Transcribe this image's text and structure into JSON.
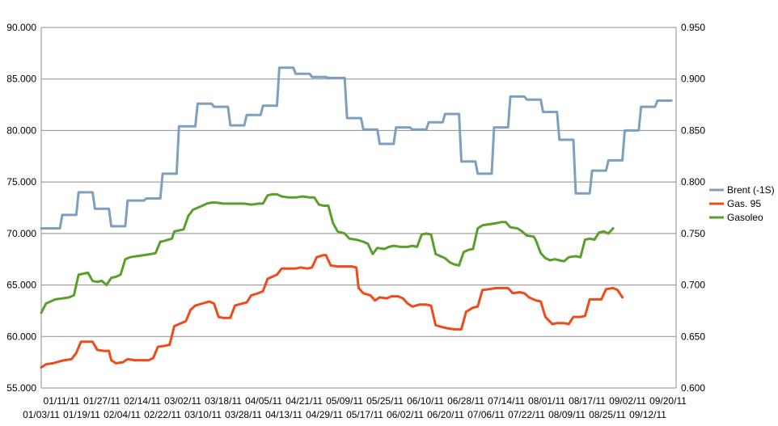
{
  "chart_data": {
    "type": "line",
    "title": "",
    "xlabel": "",
    "ylabel": "",
    "y_left": {
      "range": [
        55,
        90
      ],
      "ticks": [
        "55.000",
        "60.000",
        "65.000",
        "70.000",
        "75.000",
        "80.000",
        "85.000",
        "90.000"
      ]
    },
    "y_right": {
      "range": [
        0.6,
        0.95
      ],
      "ticks": [
        "0.600",
        "0.650",
        "0.700",
        "0.750",
        "0.800",
        "0.850",
        "0.900",
        "0.950"
      ]
    },
    "x_ticks_row1": [
      "01/11/11",
      "01/27/11",
      "02/14/11",
      "03/02/11",
      "03/18/11",
      "04/05/11",
      "04/21/11",
      "05/09/11",
      "05/25/11",
      "06/10/11",
      "06/28/11",
      "07/14/11",
      "08/01/11",
      "08/17/11",
      "09/02/11",
      "09/20/11"
    ],
    "x_ticks_row2": [
      "01/03/11",
      "01/19/11",
      "02/04/11",
      "02/22/11",
      "03/10/11",
      "03/28/11",
      "04/13/11",
      "04/29/11",
      "05/17/11",
      "06/02/11",
      "06/20/11",
      "07/06/11",
      "07/22/11",
      "08/09/11",
      "08/25/11",
      "09/12/11"
    ],
    "grid": true,
    "legend_position": "right",
    "series": [
      {
        "name": "Brent (-1S)",
        "color": "#7f9fbf",
        "axis": "left",
        "points": [
          [
            0,
            70.5
          ],
          [
            8,
            70.5
          ],
          [
            9,
            71.8
          ],
          [
            15,
            71.8
          ],
          [
            16,
            74
          ],
          [
            22,
            74
          ],
          [
            23,
            72.4
          ],
          [
            29,
            72.4
          ],
          [
            30,
            70.7
          ],
          [
            36,
            70.7
          ],
          [
            37,
            73.2
          ],
          [
            44,
            73.2
          ],
          [
            45,
            73.4
          ],
          [
            51,
            73.4
          ],
          [
            52,
            75.8
          ],
          [
            58,
            75.8
          ],
          [
            59,
            80.4
          ],
          [
            66,
            80.4
          ],
          [
            67,
            82.6
          ],
          [
            73,
            82.6
          ],
          [
            74,
            82.3
          ],
          [
            80,
            82.3
          ],
          [
            81,
            80.5
          ],
          [
            87,
            80.5
          ],
          [
            88,
            81.5
          ],
          [
            94,
            81.5
          ],
          [
            95,
            82.4
          ],
          [
            101,
            82.4
          ],
          [
            102,
            86.1
          ],
          [
            108,
            86.1
          ],
          [
            109,
            85.5
          ],
          [
            115,
            85.5
          ],
          [
            116,
            85.2
          ],
          [
            122,
            85.2
          ],
          [
            123,
            85.1
          ],
          [
            130,
            85.1
          ],
          [
            131,
            81.2
          ],
          [
            137,
            81.2
          ],
          [
            138,
            80.1
          ],
          [
            144,
            80.1
          ],
          [
            145,
            78.7
          ],
          [
            151,
            78.7
          ],
          [
            152,
            80.3
          ],
          [
            158,
            80.3
          ],
          [
            159,
            80.1
          ],
          [
            165,
            80.1
          ],
          [
            166,
            80.8
          ],
          [
            172,
            80.8
          ],
          [
            173,
            81.6
          ],
          [
            179,
            81.6
          ],
          [
            180,
            77
          ],
          [
            186,
            77
          ],
          [
            187,
            75.8
          ],
          [
            193,
            75.8
          ],
          [
            194,
            80.3
          ],
          [
            200,
            80.3
          ],
          [
            201,
            83.3
          ],
          [
            207,
            83.3
          ],
          [
            208,
            83
          ],
          [
            214,
            83
          ],
          [
            215,
            81.8
          ],
          [
            221,
            81.8
          ],
          [
            222,
            79.1
          ],
          [
            228,
            79.1
          ],
          [
            229,
            73.9
          ],
          [
            235,
            73.9
          ],
          [
            236,
            76.1
          ],
          [
            242,
            76.1
          ],
          [
            243,
            77.1
          ],
          [
            249,
            77.1
          ],
          [
            250,
            80
          ],
          [
            256,
            80
          ],
          [
            257,
            82.3
          ],
          [
            263,
            82.3
          ],
          [
            264,
            82.9
          ],
          [
            270,
            82.9
          ]
        ]
      },
      {
        "name": "Gas. 95",
        "color": "#ee4a1a",
        "axis": "right",
        "points": [
          [
            0,
            0.62
          ],
          [
            2,
            0.623
          ],
          [
            5,
            0.624
          ],
          [
            8,
            0.626
          ],
          [
            10,
            0.627
          ],
          [
            13,
            0.628
          ],
          [
            15,
            0.634
          ],
          [
            17,
            0.645
          ],
          [
            20,
            0.645
          ],
          [
            22,
            0.645
          ],
          [
            24,
            0.637
          ],
          [
            27,
            0.636
          ],
          [
            29,
            0.636
          ],
          [
            30,
            0.627
          ],
          [
            32,
            0.624
          ],
          [
            35,
            0.625
          ],
          [
            37,
            0.628
          ],
          [
            40,
            0.627
          ],
          [
            43,
            0.627
          ],
          [
            46,
            0.627
          ],
          [
            48,
            0.629
          ],
          [
            50,
            0.64
          ],
          [
            53,
            0.641
          ],
          [
            55,
            0.642
          ],
          [
            57,
            0.66
          ],
          [
            60,
            0.663
          ],
          [
            62,
            0.665
          ],
          [
            64,
            0.676
          ],
          [
            66,
            0.68
          ],
          [
            69,
            0.682
          ],
          [
            72,
            0.684
          ],
          [
            74,
            0.682
          ],
          [
            76,
            0.669
          ],
          [
            78,
            0.668
          ],
          [
            81,
            0.668
          ],
          [
            83,
            0.68
          ],
          [
            86,
            0.682
          ],
          [
            88,
            0.683
          ],
          [
            90,
            0.69
          ],
          [
            93,
            0.692
          ],
          [
            95,
            0.694
          ],
          [
            97,
            0.706
          ],
          [
            99,
            0.708
          ],
          [
            101,
            0.71
          ],
          [
            103,
            0.716
          ],
          [
            106,
            0.716
          ],
          [
            109,
            0.716
          ],
          [
            111,
            0.717
          ],
          [
            114,
            0.716
          ],
          [
            116,
            0.717
          ],
          [
            118,
            0.727
          ],
          [
            121,
            0.729
          ],
          [
            122,
            0.729
          ],
          [
            124,
            0.719
          ],
          [
            127,
            0.718
          ],
          [
            130,
            0.718
          ],
          [
            133,
            0.718
          ],
          [
            135,
            0.717
          ],
          [
            136,
            0.697
          ],
          [
            138,
            0.692
          ],
          [
            141,
            0.69
          ],
          [
            143,
            0.685
          ],
          [
            145,
            0.688
          ],
          [
            148,
            0.687
          ],
          [
            150,
            0.689
          ],
          [
            153,
            0.689
          ],
          [
            155,
            0.687
          ],
          [
            157,
            0.682
          ],
          [
            159,
            0.679
          ],
          [
            162,
            0.681
          ],
          [
            165,
            0.681
          ],
          [
            167,
            0.68
          ],
          [
            169,
            0.661
          ],
          [
            172,
            0.659
          ],
          [
            174,
            0.658
          ],
          [
            177,
            0.657
          ],
          [
            180,
            0.657
          ],
          [
            182,
            0.674
          ],
          [
            185,
            0.678
          ],
          [
            187,
            0.679
          ],
          [
            189,
            0.695
          ],
          [
            192,
            0.696
          ],
          [
            195,
            0.697
          ],
          [
            198,
            0.697
          ],
          [
            200,
            0.697
          ],
          [
            202,
            0.692
          ],
          [
            205,
            0.693
          ],
          [
            207,
            0.692
          ],
          [
            209,
            0.688
          ],
          [
            212,
            0.685
          ],
          [
            214,
            0.684
          ],
          [
            216,
            0.669
          ],
          [
            219,
            0.662
          ],
          [
            221,
            0.663
          ],
          [
            224,
            0.663
          ],
          [
            226,
            0.662
          ],
          [
            228,
            0.669
          ],
          [
            231,
            0.669
          ],
          [
            233,
            0.67
          ],
          [
            235,
            0.686
          ],
          [
            238,
            0.686
          ],
          [
            240,
            0.686
          ],
          [
            242,
            0.696
          ],
          [
            245,
            0.697
          ],
          [
            247,
            0.695
          ],
          [
            249,
            0.688
          ]
        ]
      },
      {
        "name": "Gasoleo",
        "color": "#5a9e2c",
        "axis": "right",
        "points": [
          [
            0,
            0.673
          ],
          [
            2,
            0.682
          ],
          [
            4,
            0.684
          ],
          [
            6,
            0.686
          ],
          [
            9,
            0.687
          ],
          [
            12,
            0.688
          ],
          [
            14,
            0.69
          ],
          [
            16,
            0.71
          ],
          [
            18,
            0.711
          ],
          [
            20,
            0.712
          ],
          [
            22,
            0.704
          ],
          [
            24,
            0.703
          ],
          [
            26,
            0.704
          ],
          [
            28,
            0.7
          ],
          [
            30,
            0.707
          ],
          [
            32,
            0.708
          ],
          [
            34,
            0.71
          ],
          [
            36,
            0.725
          ],
          [
            38,
            0.727
          ],
          [
            41,
            0.728
          ],
          [
            44,
            0.729
          ],
          [
            47,
            0.73
          ],
          [
            49,
            0.731
          ],
          [
            51,
            0.742
          ],
          [
            53,
            0.743
          ],
          [
            56,
            0.745
          ],
          [
            57,
            0.752
          ],
          [
            59,
            0.753
          ],
          [
            61,
            0.754
          ],
          [
            63,
            0.767
          ],
          [
            65,
            0.773
          ],
          [
            67,
            0.775
          ],
          [
            69,
            0.777
          ],
          [
            71,
            0.779
          ],
          [
            73,
            0.78
          ],
          [
            75,
            0.78
          ],
          [
            78,
            0.779
          ],
          [
            81,
            0.779
          ],
          [
            84,
            0.779
          ],
          [
            87,
            0.779
          ],
          [
            90,
            0.778
          ],
          [
            93,
            0.779
          ],
          [
            95,
            0.779
          ],
          [
            97,
            0.787
          ],
          [
            99,
            0.788
          ],
          [
            101,
            0.788
          ],
          [
            103,
            0.786
          ],
          [
            106,
            0.785
          ],
          [
            109,
            0.785
          ],
          [
            112,
            0.786
          ],
          [
            115,
            0.785
          ],
          [
            117,
            0.785
          ],
          [
            119,
            0.778
          ],
          [
            121,
            0.777
          ],
          [
            123,
            0.777
          ],
          [
            125,
            0.76
          ],
          [
            127,
            0.752
          ],
          [
            130,
            0.75
          ],
          [
            132,
            0.745
          ],
          [
            135,
            0.744
          ],
          [
            138,
            0.742
          ],
          [
            140,
            0.74
          ],
          [
            142,
            0.73
          ],
          [
            144,
            0.736
          ],
          [
            147,
            0.735
          ],
          [
            149,
            0.737
          ],
          [
            151,
            0.738
          ],
          [
            154,
            0.737
          ],
          [
            157,
            0.737
          ],
          [
            159,
            0.738
          ],
          [
            161,
            0.737
          ],
          [
            163,
            0.749
          ],
          [
            165,
            0.75
          ],
          [
            167,
            0.749
          ],
          [
            169,
            0.73
          ],
          [
            171,
            0.728
          ],
          [
            173,
            0.726
          ],
          [
            175,
            0.722
          ],
          [
            177,
            0.72
          ],
          [
            179,
            0.719
          ],
          [
            181,
            0.732
          ],
          [
            183,
            0.734
          ],
          [
            185,
            0.735
          ],
          [
            187,
            0.755
          ],
          [
            189,
            0.758
          ],
          [
            192,
            0.759
          ],
          [
            195,
            0.76
          ],
          [
            197,
            0.761
          ],
          [
            199,
            0.761
          ],
          [
            201,
            0.756
          ],
          [
            204,
            0.755
          ],
          [
            206,
            0.752
          ],
          [
            208,
            0.748
          ],
          [
            211,
            0.747
          ],
          [
            212,
            0.743
          ],
          [
            214,
            0.731
          ],
          [
            216,
            0.726
          ],
          [
            218,
            0.724
          ],
          [
            220,
            0.725
          ],
          [
            222,
            0.724
          ],
          [
            224,
            0.723
          ],
          [
            226,
            0.727
          ],
          [
            229,
            0.728
          ],
          [
            231,
            0.727
          ],
          [
            233,
            0.744
          ],
          [
            235,
            0.745
          ],
          [
            237,
            0.744
          ],
          [
            239,
            0.751
          ],
          [
            241,
            0.752
          ],
          [
            243,
            0.75
          ],
          [
            245,
            0.755
          ]
        ]
      }
    ]
  }
}
